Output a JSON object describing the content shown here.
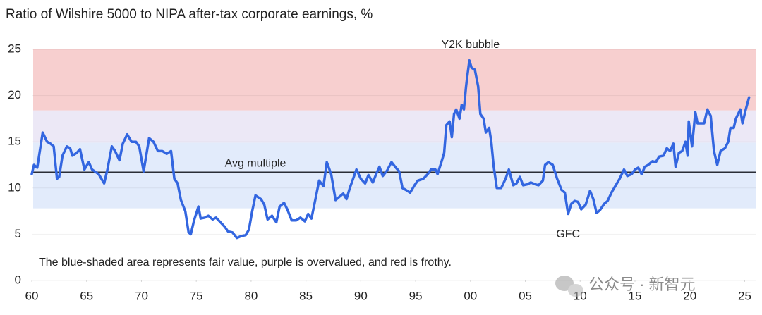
{
  "chart_data": {
    "type": "line",
    "title": "Ratio of Wilshire 5000 to NIPA after-tax corporate earnings, %",
    "note": "The blue-shaded area represents fair value, purple is overvalued, and red is frothy.",
    "watermark": "公众号 · 新智元",
    "color": "#3366e0",
    "grid": true,
    "xlim": [
      1960,
      2026
    ],
    "ylim": [
      0,
      25
    ],
    "xticks": [
      {
        "value": 1960,
        "label": "60"
      },
      {
        "value": 1965,
        "label": "65"
      },
      {
        "value": 1970,
        "label": "70"
      },
      {
        "value": 1975,
        "label": "75"
      },
      {
        "value": 1980,
        "label": "80"
      },
      {
        "value": 1985,
        "label": "85"
      },
      {
        "value": 1990,
        "label": "90"
      },
      {
        "value": 1995,
        "label": "95"
      },
      {
        "value": 2000,
        "label": "00"
      },
      {
        "value": 2005,
        "label": "05"
      },
      {
        "value": 2010,
        "label": "10"
      },
      {
        "value": 2015,
        "label": "15"
      },
      {
        "value": 2020,
        "label": "20"
      },
      {
        "value": 2025,
        "label": "25"
      }
    ],
    "yticks": [
      0,
      5,
      10,
      15,
      20,
      25
    ],
    "bands": [
      {
        "from": 7.8,
        "to": 14.9,
        "color": "#e2ebfb"
      },
      {
        "from": 14.9,
        "to": 18.4,
        "color": "#ece8f6"
      },
      {
        "from": 18.4,
        "to": 25,
        "color": "#f7cfcf"
      }
    ],
    "average": {
      "label": "Avg multiple",
      "value": 11.7,
      "color": "#2a2d36"
    },
    "annotations": [
      {
        "text": "Y2K bubble",
        "x": 2000,
        "y": 26
      },
      {
        "text": "GFC",
        "x": 2008.9,
        "y": 5.5
      }
    ],
    "x": [
      1960.0,
      1960.2,
      1960.5,
      1960.8,
      1961.0,
      1961.4,
      1961.7,
      1962.0,
      1962.3,
      1962.5,
      1962.8,
      1963.2,
      1963.5,
      1963.7,
      1964.1,
      1964.4,
      1964.8,
      1965.2,
      1965.5,
      1966.1,
      1966.6,
      1966.9,
      1967.3,
      1967.6,
      1968.0,
      1968.3,
      1968.7,
      1969.1,
      1969.5,
      1969.8,
      1970.2,
      1970.7,
      1971.1,
      1971.5,
      1971.9,
      1972.3,
      1972.7,
      1973.0,
      1973.3,
      1973.6,
      1974.0,
      1974.3,
      1974.5,
      1974.8,
      1975.2,
      1975.4,
      1975.8,
      1976.1,
      1976.5,
      1976.8,
      1977.2,
      1977.6,
      1977.9,
      1978.3,
      1978.7,
      1979.1,
      1979.5,
      1979.8,
      1980.1,
      1980.4,
      1980.9,
      1981.2,
      1981.5,
      1981.9,
      1982.3,
      1982.6,
      1983.0,
      1983.3,
      1983.7,
      1984.1,
      1984.5,
      1984.9,
      1985.2,
      1985.5,
      1985.9,
      1986.2,
      1986.6,
      1986.9,
      1987.3,
      1987.7,
      1988.0,
      1988.4,
      1988.7,
      1989.0,
      1989.3,
      1989.6,
      1990.0,
      1990.4,
      1990.7,
      1991.1,
      1991.4,
      1991.7,
      1992.0,
      1992.4,
      1992.8,
      1993.2,
      1993.5,
      1993.8,
      1994.1,
      1994.5,
      1994.9,
      1995.2,
      1995.7,
      1996.1,
      1996.4,
      1996.8,
      1997.0,
      1997.4,
      1997.6,
      1997.8,
      1998.1,
      1998.3,
      1998.5,
      1998.7,
      1999.0,
      1999.2,
      1999.4,
      1999.6,
      1999.7,
      1999.9,
      2000.1,
      2000.4,
      2000.7,
      2000.9,
      2001.2,
      2001.4,
      2001.7,
      2001.9,
      2002.1,
      2002.4,
      2002.8,
      2003.2,
      2003.5,
      2003.9,
      2004.2,
      2004.5,
      2004.8,
      2005.2,
      2005.5,
      2005.9,
      2006.2,
      2006.6,
      2006.8,
      2007.1,
      2007.5,
      2007.9,
      2008.3,
      2008.6,
      2008.9,
      2009.2,
      2009.5,
      2009.8,
      2010.1,
      2010.5,
      2010.9,
      2011.2,
      2011.5,
      2011.8,
      2012.2,
      2012.5,
      2012.9,
      2013.2,
      2013.6,
      2014.0,
      2014.3,
      2014.7,
      2015.0,
      2015.3,
      2015.6,
      2015.9,
      2016.2,
      2016.6,
      2016.9,
      2017.2,
      2017.6,
      2017.9,
      2018.2,
      2018.5,
      2018.7,
      2019.0,
      2019.3,
      2019.6,
      2019.8,
      2019.9,
      2020.2,
      2020.5,
      2020.7,
      2021.0,
      2021.3,
      2021.6,
      2021.9,
      2022.2,
      2022.5,
      2022.8,
      2023.2,
      2023.5,
      2023.7,
      2024.0,
      2024.2,
      2024.6,
      2024.8,
      2025.1,
      2025.4
    ],
    "values": [
      11.5,
      12.5,
      12.2,
      14.5,
      16,
      15,
      14.8,
      14.5,
      11,
      11.2,
      13.5,
      14.5,
      14.3,
      13.5,
      13.8,
      14.2,
      12,
      12.8,
      12,
      11.5,
      10.5,
      12,
      14.5,
      14,
      13,
      14.8,
      15.8,
      15,
      15,
      14.5,
      11.8,
      15.4,
      15,
      14,
      14,
      13.7,
      14,
      11,
      10.5,
      8.7,
      7.5,
      5.2,
      5.0,
      6.5,
      8,
      6.7,
      6.8,
      7,
      6.6,
      6.8,
      6.3,
      5.8,
      5.3,
      5.2,
      4.6,
      4.8,
      4.9,
      5.5,
      7.5,
      9.2,
      8.8,
      8.2,
      6.6,
      7,
      6.3,
      8,
      8.4,
      7.7,
      6.5,
      6.5,
      6.8,
      6.4,
      7.2,
      6.7,
      9,
      10.8,
      10.2,
      12.8,
      11.5,
      8.7,
      9,
      9.4,
      8.8,
      10,
      11,
      12,
      11,
      10.5,
      11.4,
      10.6,
      11.5,
      12.3,
      11.3,
      11.9,
      12.8,
      12.2,
      11.8,
      10,
      9.8,
      9.5,
      10.3,
      10.8,
      11,
      11.5,
      12,
      12,
      11.5,
      13,
      13.8,
      16.8,
      17.2,
      15.5,
      18,
      18.5,
      17.5,
      19,
      18.5,
      21,
      22,
      23.8,
      23,
      22.8,
      21,
      18,
      17.5,
      16,
      16.5,
      15,
      12.5,
      10,
      10,
      11,
      12,
      10.3,
      10.5,
      11.2,
      10.3,
      10.4,
      10.6,
      10.4,
      10.3,
      10.8,
      12.5,
      12.8,
      12.5,
      11,
      9.8,
      9.5,
      7.2,
      8.3,
      8.6,
      8.5,
      7.7,
      8.2,
      9.7,
      8.8,
      7.3,
      7.6,
      8.3,
      8.6,
      9.6,
      10.2,
      11,
      12,
      11.3,
      11.5,
      12,
      12.2,
      11.5,
      12.3,
      12.5,
      12.9,
      12.8,
      13.4,
      13.5,
      14.3,
      14,
      14.8,
      12.3,
      13.8,
      14,
      15,
      13.5,
      17.2,
      14.5,
      18.2,
      17,
      17,
      17,
      18.5,
      17.8,
      14,
      12.5,
      14,
      14.3,
      15,
      16.5,
      16.5,
      17.5,
      18.5,
      17,
      18.5,
      19.8
    ]
  }
}
